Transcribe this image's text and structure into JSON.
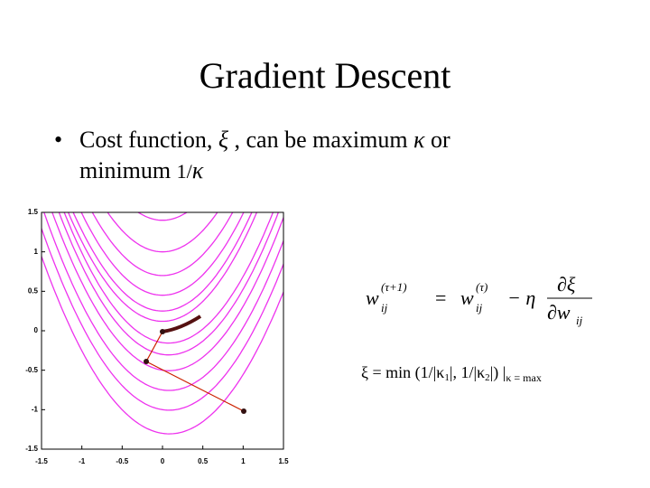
{
  "title": "Gradient Descent",
  "bullet": {
    "line1": [
      "Cost function, ",
      "ξ",
      " , can be maximum ",
      "κ",
      " or"
    ],
    "line2": [
      "minimum ",
      "1/",
      "κ"
    ]
  },
  "equation": {
    "lhs_w": "w",
    "lhs_sub": "ij",
    "lhs_sup": "(τ+1)",
    "eq": "=",
    "rhs_w": "w",
    "rhs_sub": "ij",
    "rhs_sup": "(τ)",
    "minus_eta": "− η",
    "num": "∂ξ",
    "den_w": "∂w",
    "den_sub": "ij"
  },
  "formula": {
    "main": "ξ = min (1/|κ",
    "sub1": "1",
    "mid": "|, 1/|κ",
    "sub2": "2",
    "end": "|) |",
    "cond": "κ = max"
  },
  "plot": {
    "xlim": [
      -1.5,
      1.5
    ],
    "ylim": [
      -1.5,
      1.5
    ],
    "xticks": [
      -1.5,
      -1,
      -0.5,
      0,
      0.5,
      1,
      1.5
    ],
    "yticks": [
      1.5,
      1,
      0.5,
      0,
      -0.5,
      -1,
      -1.5
    ]
  }
}
